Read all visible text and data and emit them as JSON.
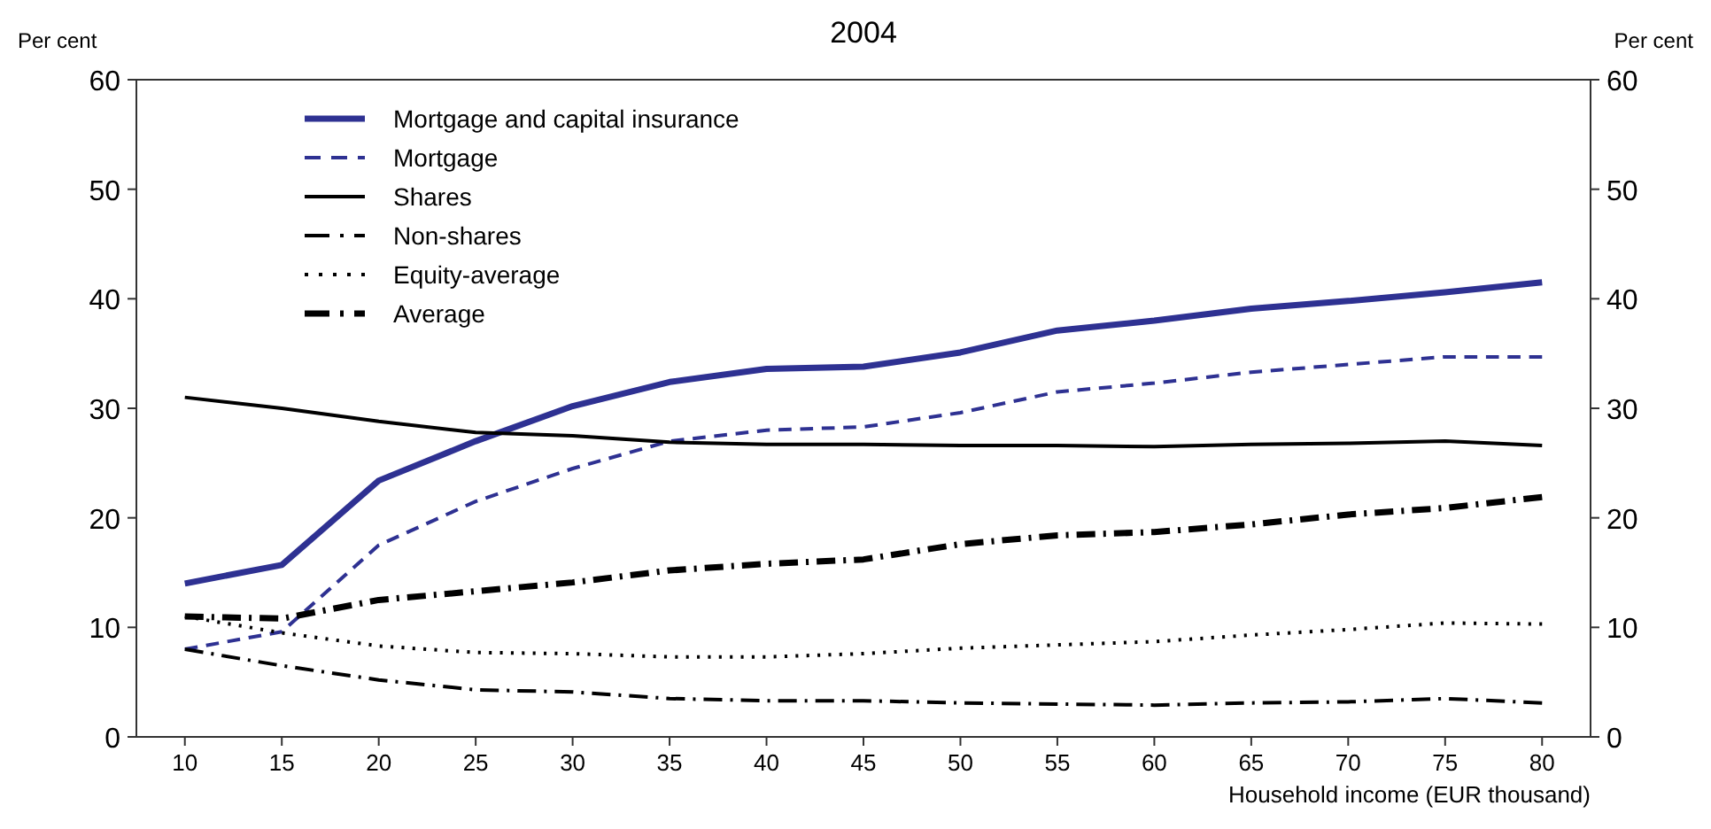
{
  "chart_data": {
    "type": "line",
    "title": "2004",
    "xlabel": "Household income (EUR thousand)",
    "ylabel": "Per cent",
    "y2label": "Per cent",
    "x": [
      10,
      15,
      20,
      25,
      30,
      35,
      40,
      45,
      50,
      55,
      60,
      65,
      70,
      75,
      80
    ],
    "xlim": [
      7.5,
      82.5
    ],
    "xticks": [
      10,
      15,
      20,
      25,
      30,
      35,
      40,
      45,
      50,
      55,
      60,
      65,
      70,
      75,
      80
    ],
    "ylim": [
      0,
      60
    ],
    "yticks": [
      0,
      10,
      20,
      30,
      40,
      50,
      60
    ],
    "y2lim": [
      0,
      60
    ],
    "y2ticks": [
      0,
      10,
      20,
      30,
      40,
      50,
      60
    ],
    "grid": false,
    "legend": "top left",
    "marker": "none",
    "series": [
      {
        "name": "Mortgage and capital insurance",
        "color": "#2e3192",
        "line_style": "solid",
        "values": [
          14,
          15.7,
          23.4,
          27,
          30.2,
          32.4,
          33.6,
          33.8,
          35.1,
          37.1,
          38,
          39.1,
          39.8,
          40.6,
          41.5
        ]
      },
      {
        "name": "Mortgage",
        "color": "#2e3192",
        "line_style": "dashed",
        "values": [
          8,
          9.6,
          17.5,
          21.5,
          24.5,
          27,
          28,
          28.3,
          29.6,
          31.5,
          32.3,
          33.3,
          34,
          34.7,
          34.7
        ]
      },
      {
        "name": "Shares",
        "color": "#000000",
        "line_style": "solid",
        "values": [
          31,
          30,
          28.8,
          27.8,
          27.5,
          26.9,
          26.7,
          26.7,
          26.6,
          26.6,
          26.5,
          26.7,
          26.8,
          27,
          26.6
        ]
      },
      {
        "name": "Non-shares",
        "color": "#000000",
        "line_style": "dashdot",
        "values": [
          8,
          6.5,
          5.2,
          4.3,
          4.1,
          3.5,
          3.3,
          3.3,
          3.1,
          3,
          2.9,
          3.1,
          3.2,
          3.5,
          3.1
        ]
      },
      {
        "name": "Equity-average",
        "color": "#000000",
        "line_style": "dotted",
        "values": [
          11,
          9.5,
          8.3,
          7.7,
          7.6,
          7.3,
          7.3,
          7.6,
          8.1,
          8.4,
          8.7,
          9.3,
          9.8,
          10.4,
          10.3
        ]
      },
      {
        "name": "Average",
        "color": "#000000",
        "line_style": "dashdot",
        "values": [
          11,
          10.8,
          12.5,
          13.3,
          14.1,
          15.2,
          15.8,
          16.2,
          17.6,
          18.4,
          18.7,
          19.4,
          20.3,
          20.9,
          21.9
        ]
      }
    ]
  }
}
